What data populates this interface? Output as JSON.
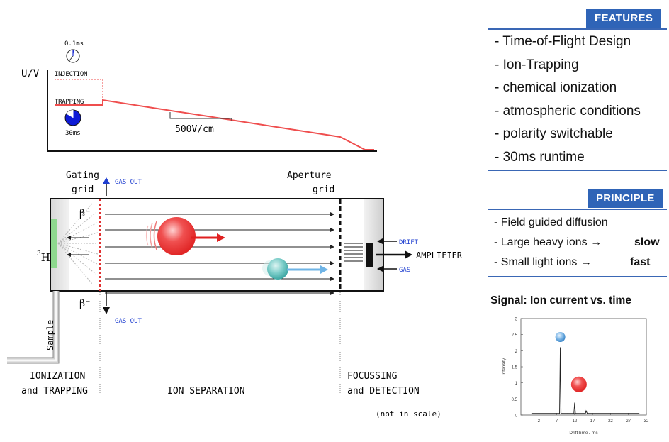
{
  "timing_plot": {
    "y_axis_label": "U/V",
    "injection_label": "INJECTION",
    "trapping_label": "TRAPPING",
    "injection_time": "0.1ms",
    "trapping_time": "30ms",
    "field_label": "500V/cm"
  },
  "drift_tube": {
    "gating_grid_label": [
      "Gating",
      "grid"
    ],
    "aperture_grid_label": [
      "Aperture",
      "grid"
    ],
    "gas_out_top": "GAS OUT",
    "gas_out_bottom": "GAS OUT",
    "beta_top": "β⁻",
    "beta_bottom": "β⁻",
    "source_label": "³H",
    "source_sup": "3",
    "source_main": "H",
    "sample_label": "Sample",
    "drift_label": "DRIFT",
    "gas_label": "GAS",
    "amplifier_label": "AMPLIFIER",
    "colors": {
      "large_ion": "#e83a3a",
      "small_ion": "#5bbcb8",
      "field_arrow_red": "#e02020",
      "field_arrow_blue": "#6fb4e6",
      "grid_red": "#e03030"
    }
  },
  "sections": {
    "ionization": [
      "IONIZATION",
      "and TRAPPING"
    ],
    "separation": "ION SEPARATION",
    "detection": [
      "FOCUSSING",
      "and DETECTION"
    ],
    "scale_note": "(not in scale)"
  },
  "features": {
    "header": "FEATURES",
    "items": [
      "- Time-of-Flight Design",
      "- Ion-Trapping",
      "- chemical ionization",
      "- atmospheric conditions",
      "- polarity switchable",
      "- 30ms runtime"
    ]
  },
  "principle": {
    "header": "PRINCIPLE",
    "items": [
      {
        "text": "- Field guided diffusion",
        "speed": ""
      },
      {
        "text": "- Large heavy ions →",
        "speed": "slow"
      },
      {
        "text": "- Small light ions →",
        "speed": "fast"
      }
    ]
  },
  "signal": {
    "title": "Signal: Ion current vs. time"
  },
  "chart_data": {
    "type": "line",
    "title": "",
    "xlabel": "DriftTime / ms",
    "ylabel": "Intensity",
    "xlim": [
      -3,
      32
    ],
    "ylim": [
      0,
      3
    ],
    "x_ticks": [
      "2",
      "7",
      "12",
      "17",
      "22",
      "27",
      "32"
    ],
    "y_ticks": [
      "0",
      "0.5",
      "1",
      "1.5",
      "2",
      "2.5",
      "3"
    ],
    "series": [
      {
        "x": [
          0,
          6.5,
          7.8,
          8.0,
          8.2,
          8.5,
          10,
          11.5,
          11.8,
          12.0,
          12.2,
          12.5,
          14.5,
          15.0,
          15.2,
          15.5,
          30
        ],
        "y": [
          0.05,
          0.05,
          0.05,
          2.1,
          0.05,
          0.05,
          0.05,
          0.05,
          0.05,
          0.38,
          0.05,
          0.05,
          0.05,
          0.05,
          0.13,
          0.05,
          0.05
        ]
      }
    ]
  }
}
